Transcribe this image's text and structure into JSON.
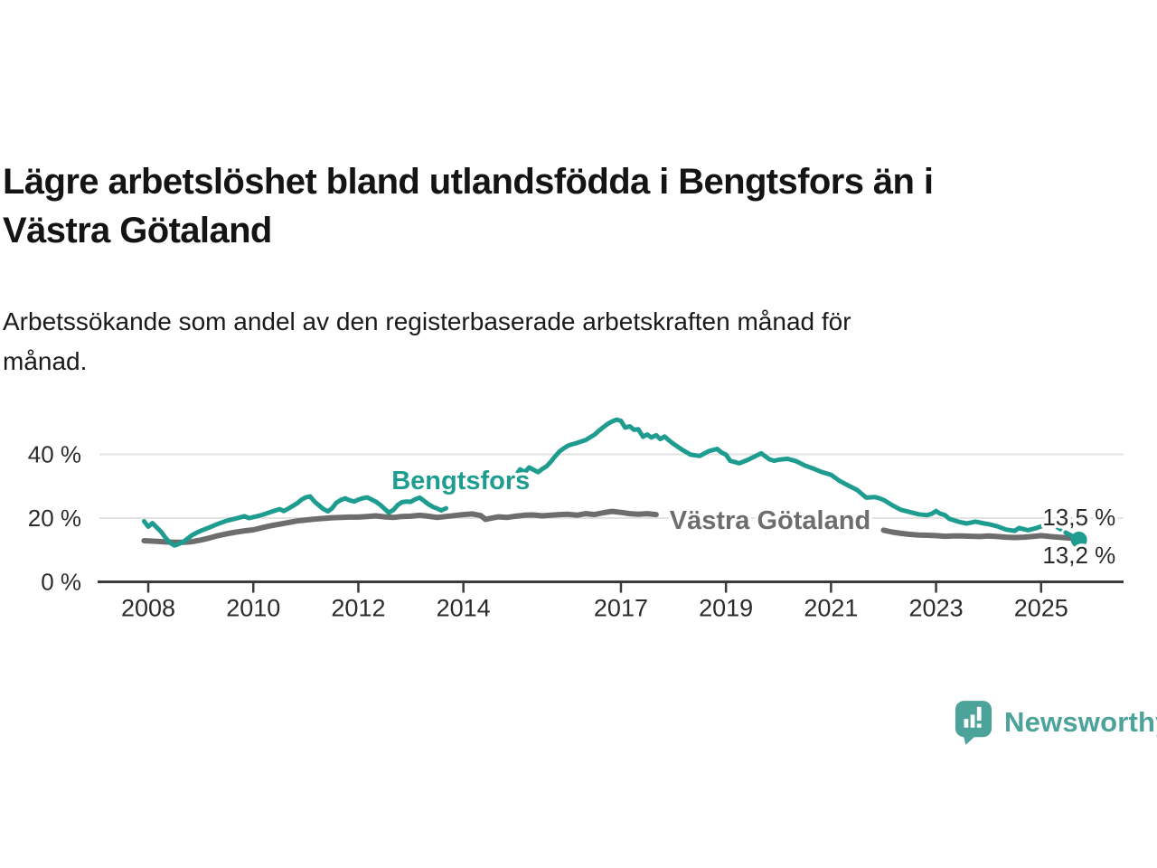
{
  "header": {
    "title": "Lägre arbetslöshet bland utlandsfödda i Bengtsfors än i\nVästra Götaland",
    "subtitle": "Arbetssökande som andel av den registerbaserade arbetskraften månad för\nmånad."
  },
  "footer": {
    "brand": "Newsworthy"
  },
  "colors": {
    "accent_teal": "#1E9C8F",
    "line_gray": "#6D6D6D",
    "logo_teal": "#4BA39A",
    "grid": "#E2E2E2",
    "axis": "#3B3B3B",
    "tick_label": "#2B2B2B"
  },
  "chart_data": {
    "type": "line",
    "title": "Lägre arbetslöshet bland utlandsfödda i Bengtsfors än i Västra Götaland",
    "subtitle": "Arbetssökande som andel av den registerbaserade arbetskraften månad för månad.",
    "grid": "horizontal",
    "legend_position": "inline-labels",
    "x_axis": {
      "tick_years": [
        2008,
        2010,
        2012,
        2014,
        2017,
        2019,
        2021,
        2023,
        2025
      ],
      "tick_labels": [
        "2008",
        "2010",
        "2012",
        "2014",
        "2017",
        "2019",
        "2021",
        "2023",
        "2025"
      ],
      "range": [
        2007.07,
        2026.57
      ]
    },
    "y_axis": {
      "tick_values": [
        0,
        20,
        40
      ],
      "tick_labels": [
        "0 %",
        "20 %",
        "40 %"
      ],
      "range": [
        0,
        55
      ],
      "unit": "%"
    },
    "series": [
      {
        "name": "Västra Götaland",
        "color": "#6D6D6D",
        "stroke_width": 6,
        "latest_value": 13.5,
        "inline_label": {
          "text": "Västra Götaland",
          "x": 2019.84,
          "value": 19.4
        },
        "points": [
          [
            2007.92,
            12.9
          ],
          [
            2008.17,
            12.7
          ],
          [
            2008.33,
            12.5
          ],
          [
            2008.5,
            12.4
          ],
          [
            2008.67,
            12.4
          ],
          [
            2008.83,
            12.6
          ],
          [
            2009.0,
            13.1
          ],
          [
            2009.17,
            13.8
          ],
          [
            2009.33,
            14.5
          ],
          [
            2009.5,
            15.1
          ],
          [
            2009.67,
            15.6
          ],
          [
            2009.83,
            16.0
          ],
          [
            2010.0,
            16.3
          ],
          [
            2010.17,
            17.0
          ],
          [
            2010.33,
            17.6
          ],
          [
            2010.5,
            18.1
          ],
          [
            2010.67,
            18.6
          ],
          [
            2010.83,
            19.1
          ],
          [
            2011.0,
            19.4
          ],
          [
            2011.17,
            19.7
          ],
          [
            2011.33,
            19.9
          ],
          [
            2011.5,
            20.1
          ],
          [
            2011.67,
            20.2
          ],
          [
            2011.83,
            20.3
          ],
          [
            2012.0,
            20.3
          ],
          [
            2012.17,
            20.5
          ],
          [
            2012.33,
            20.7
          ],
          [
            2012.5,
            20.4
          ],
          [
            2012.67,
            20.2
          ],
          [
            2012.83,
            20.5
          ],
          [
            2013.0,
            20.6
          ],
          [
            2013.17,
            20.9
          ],
          [
            2013.33,
            20.6
          ],
          [
            2013.5,
            20.2
          ],
          [
            2013.67,
            20.5
          ],
          [
            2013.83,
            20.8
          ],
          [
            2014.0,
            21.1
          ],
          [
            2014.17,
            21.3
          ],
          [
            2014.33,
            20.8
          ],
          [
            2014.42,
            19.6
          ],
          [
            2014.5,
            19.9
          ],
          [
            2014.67,
            20.4
          ],
          [
            2014.83,
            20.2
          ],
          [
            2015.0,
            20.6
          ],
          [
            2015.17,
            20.9
          ],
          [
            2015.33,
            21.0
          ],
          [
            2015.5,
            20.7
          ],
          [
            2015.67,
            20.9
          ],
          [
            2015.83,
            21.1
          ],
          [
            2016.0,
            21.2
          ],
          [
            2016.17,
            20.9
          ],
          [
            2016.33,
            21.4
          ],
          [
            2016.5,
            21.1
          ],
          [
            2016.67,
            21.7
          ],
          [
            2016.83,
            22.1
          ],
          [
            2017.0,
            21.8
          ],
          [
            2017.17,
            21.4
          ],
          [
            2017.33,
            21.2
          ],
          [
            2017.5,
            21.4
          ],
          [
            2017.67,
            21.1
          ],
          null,
          [
            2022.0,
            16.2
          ],
          [
            2022.17,
            15.6
          ],
          [
            2022.33,
            15.2
          ],
          [
            2022.5,
            14.9
          ],
          [
            2022.67,
            14.7
          ],
          [
            2022.83,
            14.6
          ],
          [
            2023.0,
            14.5
          ],
          [
            2023.17,
            14.3
          ],
          [
            2023.33,
            14.4
          ],
          [
            2023.5,
            14.4
          ],
          [
            2023.67,
            14.3
          ],
          [
            2023.83,
            14.2
          ],
          [
            2024.0,
            14.4
          ],
          [
            2024.17,
            14.2
          ],
          [
            2024.33,
            14.0
          ],
          [
            2024.5,
            13.9
          ],
          [
            2024.67,
            14.0
          ],
          [
            2024.83,
            14.2
          ],
          [
            2025.0,
            14.5
          ],
          [
            2025.17,
            14.2
          ],
          [
            2025.33,
            14.0
          ],
          [
            2025.5,
            13.8
          ],
          [
            2025.72,
            13.5
          ]
        ]
      },
      {
        "name": "Bengtsfors",
        "color": "#1E9C8F",
        "stroke_width": 5,
        "latest_value": 13.2,
        "inline_label": {
          "text": "Bengtsfors",
          "x": 2013.95,
          "value": 31.9
        },
        "points": [
          [
            2007.92,
            19.0
          ],
          [
            2008.0,
            17.3
          ],
          [
            2008.08,
            18.4
          ],
          [
            2008.17,
            16.9
          ],
          [
            2008.25,
            15.6
          ],
          [
            2008.33,
            13.8
          ],
          [
            2008.42,
            12.2
          ],
          [
            2008.5,
            11.4
          ],
          [
            2008.58,
            11.9
          ],
          [
            2008.67,
            12.6
          ],
          [
            2008.75,
            13.6
          ],
          [
            2008.83,
            14.6
          ],
          [
            2008.92,
            15.4
          ],
          [
            2009.0,
            16.0
          ],
          [
            2009.17,
            17.1
          ],
          [
            2009.33,
            18.2
          ],
          [
            2009.5,
            19.2
          ],
          [
            2009.67,
            19.9
          ],
          [
            2009.83,
            20.6
          ],
          [
            2009.92,
            20.0
          ],
          [
            2010.0,
            20.3
          ],
          [
            2010.17,
            21.0
          ],
          [
            2010.33,
            21.9
          ],
          [
            2010.5,
            22.8
          ],
          [
            2010.58,
            22.2
          ],
          [
            2010.67,
            23.0
          ],
          [
            2010.83,
            24.6
          ],
          [
            2010.92,
            25.8
          ],
          [
            2011.0,
            26.5
          ],
          [
            2011.08,
            26.8
          ],
          [
            2011.17,
            25.1
          ],
          [
            2011.25,
            24.0
          ],
          [
            2011.33,
            22.9
          ],
          [
            2011.42,
            22.1
          ],
          [
            2011.5,
            23.1
          ],
          [
            2011.58,
            24.8
          ],
          [
            2011.67,
            25.7
          ],
          [
            2011.75,
            26.2
          ],
          [
            2011.83,
            25.6
          ],
          [
            2011.92,
            25.2
          ],
          [
            2012.0,
            25.8
          ],
          [
            2012.08,
            26.2
          ],
          [
            2012.17,
            26.5
          ],
          [
            2012.33,
            25.2
          ],
          [
            2012.42,
            24.1
          ],
          [
            2012.5,
            22.9
          ],
          [
            2012.58,
            21.7
          ],
          [
            2012.67,
            22.6
          ],
          [
            2012.75,
            24.1
          ],
          [
            2012.83,
            25.0
          ],
          [
            2012.92,
            25.2
          ],
          [
            2013.0,
            25.1
          ],
          [
            2013.08,
            25.9
          ],
          [
            2013.17,
            26.4
          ],
          [
            2013.25,
            25.4
          ],
          [
            2013.33,
            24.4
          ],
          [
            2013.42,
            23.5
          ],
          [
            2013.5,
            23.0
          ],
          [
            2013.58,
            22.4
          ],
          [
            2013.67,
            23.1
          ],
          null,
          [
            2015.0,
            33.5
          ],
          [
            2015.08,
            35.3
          ],
          [
            2015.17,
            34.4
          ],
          [
            2015.25,
            35.9
          ],
          [
            2015.33,
            35.2
          ],
          [
            2015.42,
            34.4
          ],
          [
            2015.5,
            35.4
          ],
          [
            2015.58,
            36.2
          ],
          [
            2015.67,
            37.8
          ],
          [
            2015.75,
            39.4
          ],
          [
            2015.83,
            40.9
          ],
          [
            2015.92,
            42.0
          ],
          [
            2016.0,
            42.8
          ],
          [
            2016.17,
            43.6
          ],
          [
            2016.33,
            44.5
          ],
          [
            2016.5,
            46.2
          ],
          [
            2016.58,
            47.4
          ],
          [
            2016.67,
            48.6
          ],
          [
            2016.75,
            49.6
          ],
          [
            2016.83,
            50.3
          ],
          [
            2016.92,
            50.9
          ],
          [
            2017.0,
            50.5
          ],
          [
            2017.08,
            48.4
          ],
          [
            2017.17,
            48.8
          ],
          [
            2017.25,
            47.7
          ],
          [
            2017.33,
            47.9
          ],
          [
            2017.42,
            45.5
          ],
          [
            2017.5,
            46.2
          ],
          [
            2017.58,
            45.3
          ],
          [
            2017.67,
            46.0
          ],
          [
            2017.75,
            44.8
          ],
          [
            2017.83,
            45.6
          ],
          [
            2017.92,
            44.3
          ],
          [
            2018.0,
            43.3
          ],
          [
            2018.17,
            41.4
          ],
          [
            2018.33,
            39.9
          ],
          [
            2018.5,
            39.5
          ],
          [
            2018.67,
            41.0
          ],
          [
            2018.83,
            41.7
          ],
          [
            2018.92,
            40.5
          ],
          [
            2019.0,
            39.9
          ],
          [
            2019.08,
            38.0
          ],
          [
            2019.25,
            37.2
          ],
          [
            2019.42,
            38.3
          ],
          [
            2019.58,
            39.6
          ],
          [
            2019.67,
            40.3
          ],
          [
            2019.83,
            38.4
          ],
          [
            2019.92,
            38.0
          ],
          [
            2020.0,
            38.3
          ],
          [
            2020.17,
            38.6
          ],
          [
            2020.33,
            37.9
          ],
          [
            2020.5,
            36.5
          ],
          [
            2020.67,
            35.5
          ],
          [
            2020.83,
            34.4
          ],
          [
            2021.0,
            33.6
          ],
          [
            2021.17,
            31.6
          ],
          [
            2021.33,
            30.2
          ],
          [
            2021.5,
            28.8
          ],
          [
            2021.67,
            26.4
          ],
          [
            2021.83,
            26.6
          ],
          [
            2021.92,
            26.2
          ],
          [
            2022.0,
            25.7
          ],
          [
            2022.17,
            24.0
          ],
          [
            2022.33,
            22.6
          ],
          [
            2022.5,
            21.9
          ],
          [
            2022.67,
            21.2
          ],
          [
            2022.83,
            20.9
          ],
          [
            2022.92,
            21.4
          ],
          [
            2023.0,
            22.2
          ],
          [
            2023.08,
            21.4
          ],
          [
            2023.17,
            20.9
          ],
          [
            2023.25,
            19.8
          ],
          [
            2023.42,
            18.9
          ],
          [
            2023.58,
            18.3
          ],
          [
            2023.75,
            18.9
          ],
          [
            2023.92,
            18.3
          ],
          [
            2024.0,
            18.1
          ],
          [
            2024.17,
            17.4
          ],
          [
            2024.33,
            16.4
          ],
          [
            2024.5,
            16.0
          ],
          [
            2024.58,
            16.9
          ],
          [
            2024.75,
            16.2
          ],
          [
            2024.92,
            16.9
          ],
          [
            2025.0,
            17.4
          ],
          [
            2025.08,
            17.9
          ],
          [
            2025.17,
            18.6
          ],
          [
            2025.25,
            17.8
          ]
        ],
        "dashed_tail": [
          [
            2025.25,
            17.8
          ],
          [
            2025.45,
            15.6
          ],
          [
            2025.6,
            14.3
          ],
          [
            2025.72,
            13.2
          ]
        ],
        "end_dot": {
          "x": 2025.72,
          "value": 13.2,
          "radius": 9
        }
      }
    ],
    "annotations": [
      {
        "text": "13,5 %",
        "x": 2026.42,
        "value": 20.3,
        "anchor": "end"
      },
      {
        "text": "13,2 %",
        "x": 2026.42,
        "value": 8.4,
        "anchor": "end"
      }
    ]
  }
}
